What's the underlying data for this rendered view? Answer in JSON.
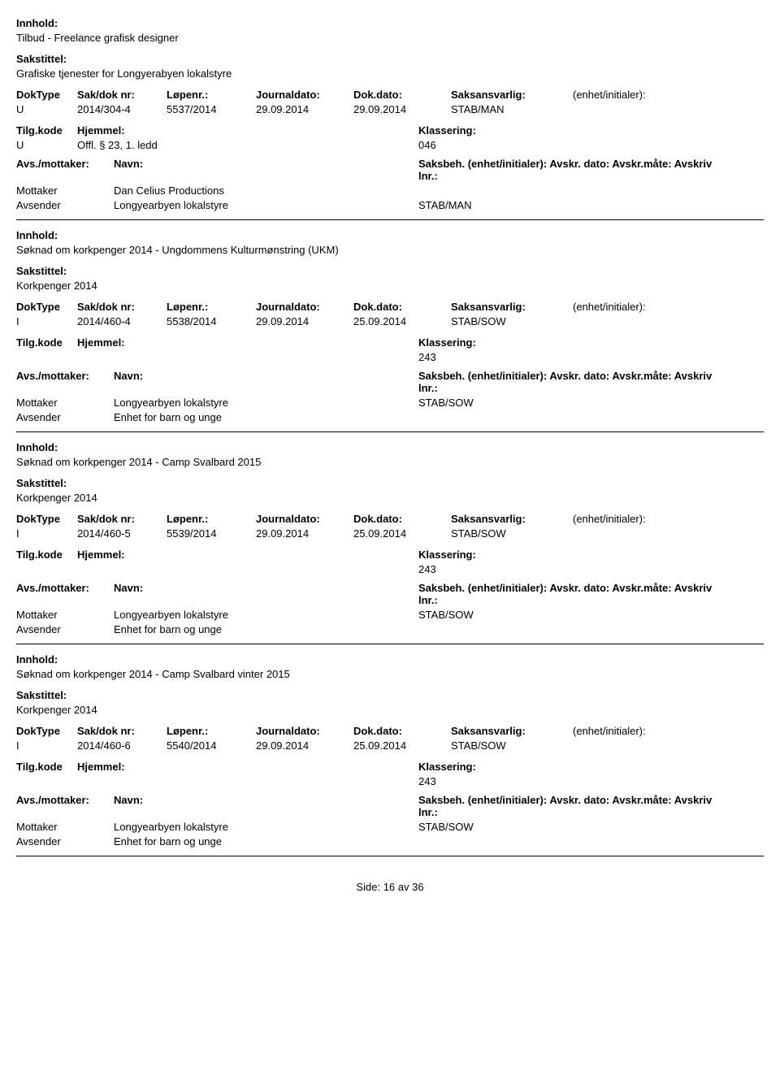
{
  "labels": {
    "innhold": "Innhold:",
    "sakstittel": "Sakstittel:",
    "doktype": "DokType",
    "sakdok": "Sak/dok nr:",
    "lopenr": "Løpenr.:",
    "journaldato": "Journaldato:",
    "dokdato": "Dok.dato:",
    "saksansvarlig": "Saksansvarlig:",
    "enhet": "(enhet/initialer):",
    "tilgkode": "Tilg.kode",
    "hjemmel": "Hjemmel:",
    "klassering": "Klassering:",
    "avsmottaker": "Avs./mottaker:",
    "navn": "Navn:",
    "saksbeh": "Saksbeh. (enhet/initialer): Avskr. dato:  Avskr.måte:  Avskriv lnr.:",
    "mottaker": "Mottaker",
    "avsender": "Avsender",
    "side": "Side:",
    "pagenum": "16 av  36"
  },
  "records": [
    {
      "innhold": "Tilbud - Freelance grafisk designer",
      "sakstittel": "Grafiske tjenester for Longyerabyen lokalstyre",
      "doktype": "U",
      "sakdok": "2014/304-4",
      "lopenr": "5537/2014",
      "journaldato": "29.09.2014",
      "dokdato": "29.09.2014",
      "saksansvarlig": "STAB/MAN",
      "tilgkode": "U",
      "hjemmel": "Offl. § 23, 1. ledd",
      "klassering": "046",
      "mottaker_navn": "Dan Celius Productions",
      "mottaker_saksbeh": "",
      "avsender_navn": "Longyearbyen lokalstyre",
      "avsender_saksbeh": "STAB/MAN"
    },
    {
      "innhold": "Søknad om korkpenger 2014 - Ungdommens Kulturmønstring (UKM)",
      "sakstittel": "Korkpenger 2014",
      "doktype": "I",
      "sakdok": "2014/460-4",
      "lopenr": "5538/2014",
      "journaldato": "29.09.2014",
      "dokdato": "25.09.2014",
      "saksansvarlig": "STAB/SOW",
      "tilgkode": "",
      "hjemmel": "",
      "klassering": "243",
      "mottaker_navn": "Longyearbyen lokalstyre",
      "mottaker_saksbeh": "STAB/SOW",
      "avsender_navn": "Enhet for barn og unge",
      "avsender_saksbeh": ""
    },
    {
      "innhold": "Søknad om korkpenger 2014 - Camp Svalbard 2015",
      "sakstittel": "Korkpenger 2014",
      "doktype": "I",
      "sakdok": "2014/460-5",
      "lopenr": "5539/2014",
      "journaldato": "29.09.2014",
      "dokdato": "25.09.2014",
      "saksansvarlig": "STAB/SOW",
      "tilgkode": "",
      "hjemmel": "",
      "klassering": "243",
      "mottaker_navn": "Longyearbyen lokalstyre",
      "mottaker_saksbeh": "STAB/SOW",
      "avsender_navn": "Enhet for barn og unge",
      "avsender_saksbeh": ""
    },
    {
      "innhold": "Søknad om korkpenger 2014 - Camp Svalbard vinter 2015",
      "sakstittel": "Korkpenger 2014",
      "doktype": "I",
      "sakdok": "2014/460-6",
      "lopenr": "5540/2014",
      "journaldato": "29.09.2014",
      "dokdato": "25.09.2014",
      "saksansvarlig": "STAB/SOW",
      "tilgkode": "",
      "hjemmel": "",
      "klassering": "243",
      "mottaker_navn": "Longyearbyen lokalstyre",
      "mottaker_saksbeh": "STAB/SOW",
      "avsender_navn": "Enhet for barn og unge",
      "avsender_saksbeh": ""
    }
  ]
}
